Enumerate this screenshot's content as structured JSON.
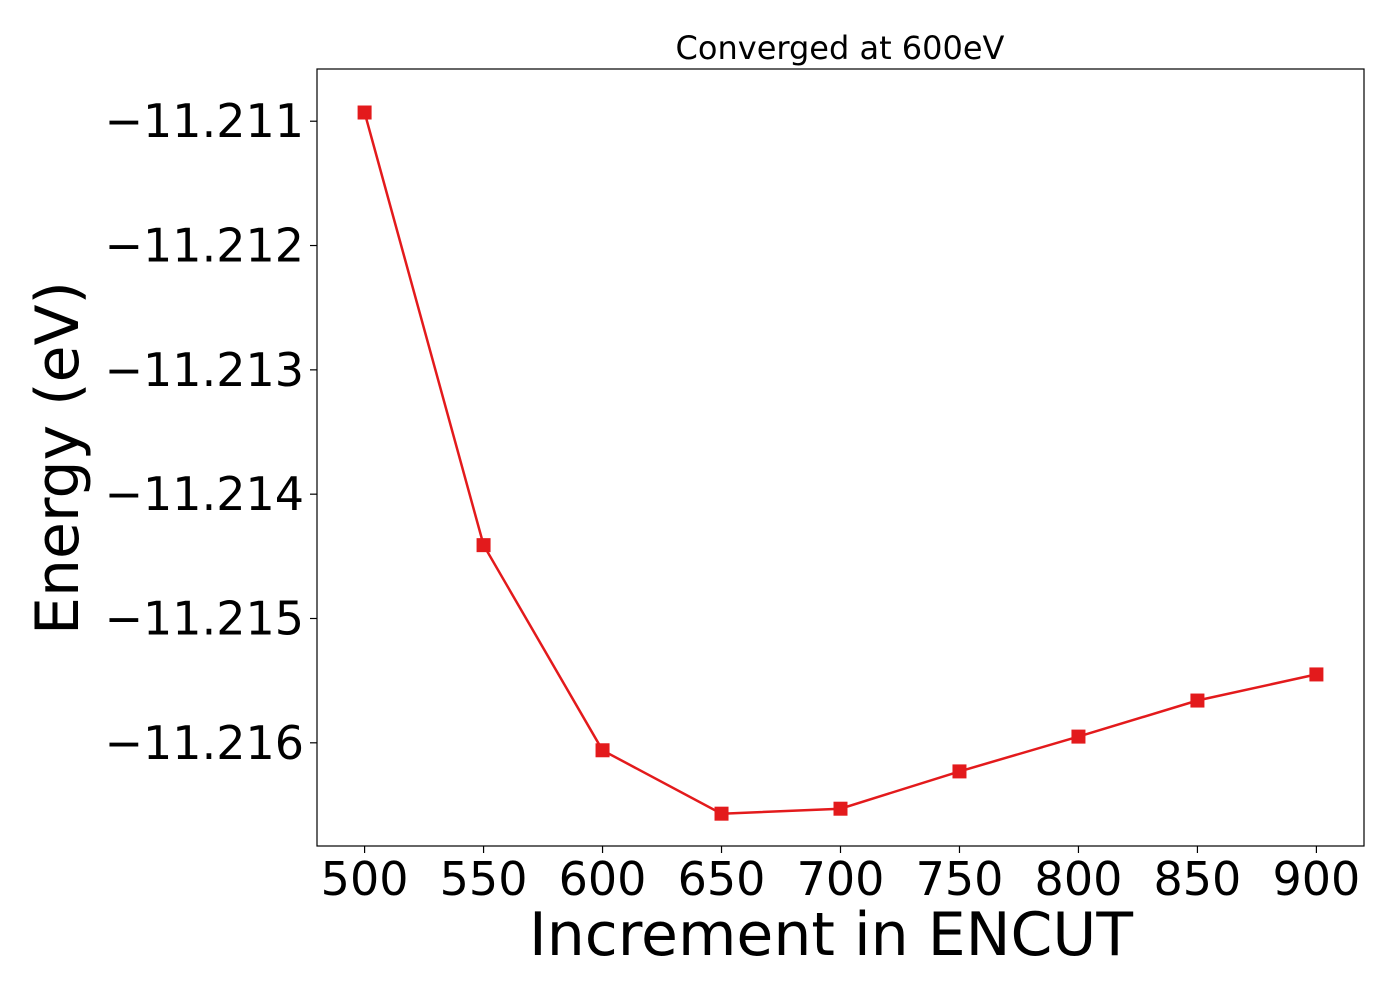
{
  "chart_data": {
    "type": "line",
    "title": "Converged at 600eV",
    "xlabel": "Increment in ENCUT",
    "ylabel": "Energy (eV)",
    "x": [
      500,
      550,
      600,
      650,
      700,
      750,
      800,
      850,
      900
    ],
    "series": [
      {
        "values": [
          -11.21093,
          -11.21441,
          -11.21606,
          -11.21657,
          -11.21653,
          -11.21623,
          -11.21595,
          -11.21566,
          -11.21545
        ],
        "color": "#e31a1c",
        "marker": "square"
      }
    ],
    "xticks": [
      500,
      550,
      600,
      650,
      700,
      750,
      800,
      850,
      900
    ],
    "yticks": [
      -11.216,
      -11.215,
      -11.214,
      -11.213,
      -11.212,
      -11.211
    ],
    "xtick_labels": [
      "500",
      "550",
      "600",
      "650",
      "700",
      "750",
      "800",
      "850",
      "900"
    ],
    "ytick_labels": [
      "−11.216",
      "−11.215",
      "−11.214",
      "−11.213",
      "−11.212",
      "−11.211"
    ],
    "xlim": [
      480,
      920
    ],
    "ylim": [
      -11.21683,
      -11.21058
    ],
    "grid": false,
    "legend": "none"
  }
}
